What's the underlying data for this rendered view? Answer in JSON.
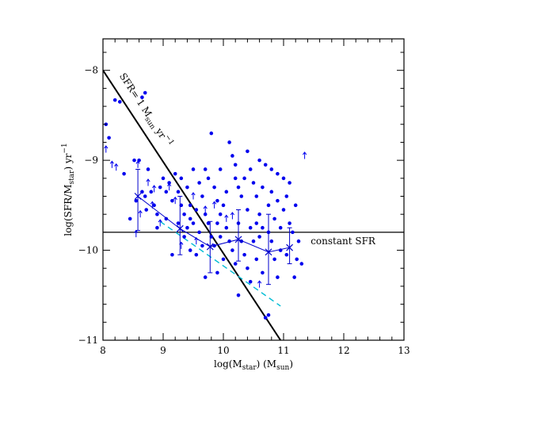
{
  "chart_data": {
    "type": "scatter",
    "xlim": [
      8,
      13
    ],
    "ylim": [
      -11,
      -7.65
    ],
    "x_ticks": [
      8,
      9,
      10,
      11,
      12,
      13
    ],
    "y_ticks": [
      -8,
      -9,
      -10,
      -11
    ],
    "xlabel": {
      "main": "log(M",
      "sub": "star",
      "tail": ") (M",
      "sub2": "sun",
      "end": ")"
    },
    "ylabel": {
      "main": "log(SFR/M",
      "sub": "star",
      "tail": ") yr",
      "sup": "−1"
    },
    "grid": false,
    "colors": {
      "points": "#0000ee",
      "binned": "#0000cc",
      "dashed": "#00bcd4",
      "lines": "#000000"
    },
    "reference_lines": [
      {
        "name": "constant_sfr",
        "label": "constant SFR",
        "type": "horizontal",
        "y": -9.8
      },
      {
        "name": "sfr_1",
        "label_main": "SFR= 1 M",
        "label_sub": "sun",
        "label_tail": " yr",
        "label_sup": "−1",
        "type": "line",
        "x1": 8.0,
        "y1": -8.0,
        "x2": 10.95,
        "y2": -11.0
      }
    ],
    "dashed_fit": {
      "x": [
        8.95,
        10.95
      ],
      "y": [
        -9.68,
        -10.62
      ]
    },
    "binned": {
      "x": [
        8.58,
        9.28,
        9.78,
        10.25,
        10.75,
        11.1
      ],
      "y": [
        -9.4,
        -9.76,
        -9.96,
        -9.88,
        -10.02,
        -9.97
      ],
      "err_low": [
        -9.78,
        -10.05,
        -10.25,
        -10.12,
        -10.38,
        -10.15
      ],
      "err_high": [
        -9.1,
        -9.4,
        -9.68,
        -9.55,
        -9.6,
        -9.75
      ]
    },
    "upper_limits": [
      [
        8.05,
        -8.88
      ],
      [
        8.15,
        -9.05
      ],
      [
        8.22,
        -9.08
      ],
      [
        8.58,
        -9.05
      ],
      [
        8.75,
        -9.25
      ],
      [
        8.85,
        -9.32
      ],
      [
        8.62,
        -9.6
      ],
      [
        8.82,
        -9.5
      ],
      [
        8.55,
        -9.82
      ],
      [
        8.95,
        -9.7
      ],
      [
        9.3,
        -9.95
      ],
      [
        9.55,
        -9.9
      ],
      [
        9.2,
        -9.45
      ],
      [
        9.1,
        -9.3
      ],
      [
        9.5,
        -9.4
      ],
      [
        9.7,
        -9.55
      ],
      [
        9.85,
        -9.5
      ],
      [
        10.15,
        -9.62
      ],
      [
        10.6,
        -10.38
      ],
      [
        11.35,
        -8.95
      ],
      [
        10.05,
        -9.65
      ]
    ],
    "points": [
      [
        8.05,
        -8.6
      ],
      [
        8.1,
        -8.75
      ],
      [
        8.2,
        -8.33
      ],
      [
        8.28,
        -8.35
      ],
      [
        8.65,
        -8.3
      ],
      [
        8.7,
        -8.25
      ],
      [
        8.75,
        -9.1
      ],
      [
        8.35,
        -9.15
      ],
      [
        8.52,
        -9.0
      ],
      [
        8.6,
        -9.0
      ],
      [
        8.55,
        -9.45
      ],
      [
        8.45,
        -9.65
      ],
      [
        8.65,
        -9.35
      ],
      [
        8.7,
        -9.4
      ],
      [
        8.8,
        -9.35
      ],
      [
        8.72,
        -9.55
      ],
      [
        8.85,
        -9.5
      ],
      [
        8.9,
        -9.6
      ],
      [
        8.95,
        -9.3
      ],
      [
        9.0,
        -9.2
      ],
      [
        9.05,
        -9.35
      ],
      [
        9.1,
        -9.25
      ],
      [
        9.15,
        -9.45
      ],
      [
        9.2,
        -9.15
      ],
      [
        9.25,
        -9.35
      ],
      [
        9.3,
        -9.5
      ],
      [
        9.35,
        -9.6
      ],
      [
        9.4,
        -9.3
      ],
      [
        9.45,
        -9.5
      ],
      [
        9.5,
        -9.7
      ],
      [
        9.55,
        -9.55
      ],
      [
        9.6,
        -9.25
      ],
      [
        9.65,
        -9.4
      ],
      [
        9.7,
        -9.6
      ],
      [
        9.75,
        -9.2
      ],
      [
        9.8,
        -8.7
      ],
      [
        9.85,
        -9.3
      ],
      [
        9.9,
        -9.45
      ],
      [
        9.95,
        -9.6
      ],
      [
        10.0,
        -9.5
      ],
      [
        10.05,
        -9.35
      ],
      [
        10.1,
        -8.8
      ],
      [
        10.15,
        -8.95
      ],
      [
        10.2,
        -9.2
      ],
      [
        10.25,
        -9.3
      ],
      [
        10.3,
        -9.4
      ],
      [
        10.35,
        -9.2
      ],
      [
        10.4,
        -9.55
      ],
      [
        10.45,
        -9.1
      ],
      [
        10.5,
        -9.25
      ],
      [
        10.55,
        -9.4
      ],
      [
        10.6,
        -9.6
      ],
      [
        10.65,
        -9.3
      ],
      [
        10.7,
        -9.05
      ],
      [
        10.75,
        -9.5
      ],
      [
        10.8,
        -9.35
      ],
      [
        10.85,
        -9.65
      ],
      [
        10.9,
        -9.45
      ],
      [
        10.95,
        -9.75
      ],
      [
        11.0,
        -9.55
      ],
      [
        11.05,
        -9.4
      ],
      [
        11.1,
        -9.7
      ],
      [
        11.15,
        -9.8
      ],
      [
        11.2,
        -9.5
      ],
      [
        11.25,
        -9.9
      ],
      [
        11.3,
        -10.15
      ],
      [
        11.18,
        -10.3
      ],
      [
        11.22,
        -10.1
      ],
      [
        10.9,
        -10.3
      ],
      [
        10.65,
        -10.25
      ],
      [
        10.4,
        -10.2
      ],
      [
        10.2,
        -10.15
      ],
      [
        10.0,
        -10.1
      ],
      [
        9.9,
        -10.25
      ],
      [
        9.7,
        -10.3
      ],
      [
        9.45,
        -10.0
      ],
      [
        9.15,
        -10.05
      ],
      [
        10.7,
        -10.75
      ],
      [
        10.75,
        -10.72
      ],
      [
        10.25,
        -10.5
      ],
      [
        10.45,
        -10.35
      ],
      [
        10.55,
        -10.1
      ],
      [
        10.3,
        -9.9
      ],
      [
        10.1,
        -9.9
      ],
      [
        9.95,
        -9.85
      ],
      [
        9.8,
        -9.85
      ],
      [
        9.6,
        -9.8
      ],
      [
        9.4,
        -9.75
      ],
      [
        9.25,
        -9.7
      ],
      [
        9.05,
        -9.65
      ],
      [
        8.9,
        -9.75
      ],
      [
        10.5,
        -9.9
      ],
      [
        10.6,
        -9.85
      ],
      [
        10.8,
        -9.9
      ],
      [
        10.95,
        -10.0
      ],
      [
        11.05,
        -10.05
      ],
      [
        10.85,
        -10.1
      ],
      [
        10.35,
        -10.05
      ],
      [
        10.15,
        -10.0
      ],
      [
        9.85,
        -9.95
      ],
      [
        9.65,
        -9.95
      ],
      [
        9.55,
        -10.05
      ],
      [
        10.45,
        -9.75
      ],
      [
        10.55,
        -9.7
      ],
      [
        10.65,
        -9.75
      ],
      [
        10.75,
        -9.8
      ],
      [
        10.25,
        -9.7
      ],
      [
        10.05,
        -9.75
      ],
      [
        9.9,
        -9.7
      ],
      [
        9.75,
        -9.7
      ],
      [
        9.45,
        -9.65
      ],
      [
        9.35,
        -9.85
      ],
      [
        11.1,
        -9.25
      ],
      [
        11.0,
        -9.2
      ],
      [
        10.9,
        -9.15
      ],
      [
        10.8,
        -9.1
      ],
      [
        10.4,
        -8.9
      ],
      [
        10.2,
        -9.05
      ],
      [
        9.95,
        -9.1
      ],
      [
        9.7,
        -9.1
      ],
      [
        9.5,
        -9.1
      ],
      [
        9.3,
        -9.2
      ],
      [
        10.6,
        -9.0
      ]
    ]
  }
}
